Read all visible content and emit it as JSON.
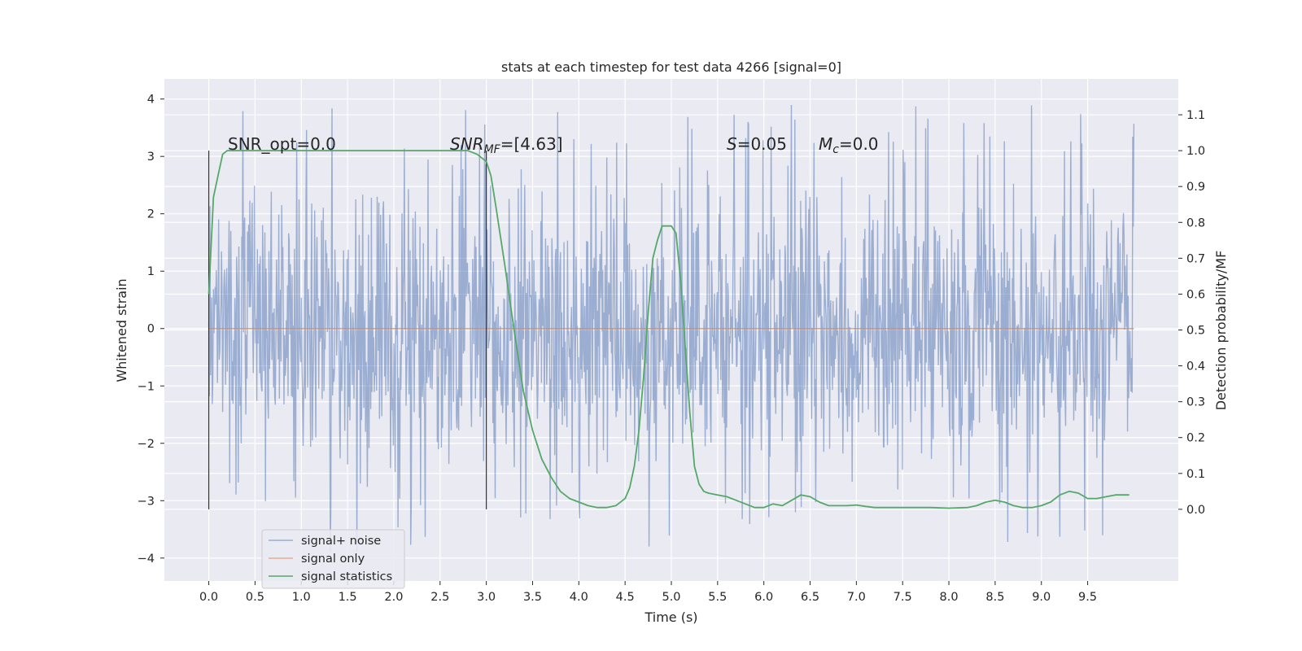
{
  "chart_data": {
    "type": "line",
    "title": "stats at each timestep for test data 4266 [signal=0]",
    "xlabel": "Time (s)",
    "ylabel_left": "Whitened strain",
    "ylabel_right": "Detection probability/MF",
    "xlim": [
      -0.48,
      10.48
    ],
    "ylim_left": [
      -4.4,
      4.35
    ],
    "ylim_right": [
      -0.2,
      1.2
    ],
    "x_ticks": [
      "0.0",
      "0.5",
      "1.0",
      "1.5",
      "2.0",
      "2.5",
      "3.0",
      "3.5",
      "4.0",
      "4.5",
      "5.0",
      "5.5",
      "6.0",
      "6.5",
      "7.0",
      "7.5",
      "8.0",
      "8.5",
      "9.0",
      "9.5"
    ],
    "y_ticks_left": [
      "4",
      "3",
      "2",
      "1",
      "0",
      "−1",
      "−2",
      "−3",
      "−4"
    ],
    "y_ticks_right": [
      "1.1",
      "1.0",
      "0.9",
      "0.8",
      "0.7",
      "0.6",
      "0.5",
      "0.4",
      "0.3",
      "0.2",
      "0.1",
      "0.0"
    ],
    "grid": true,
    "legend_position": "lower-left",
    "vlines_x": [
      0.0,
      3.0
    ],
    "annotations": {
      "snr_opt": "SNR_opt=0.0",
      "snr_mf_label": "SNR",
      "snr_mf_sub": "MF",
      "snr_mf_value": "=[4.63]",
      "s_label": "S",
      "s_value": "=0.05",
      "mc_label": "M",
      "mc_sub": "c",
      "mc_value": "=0.0"
    },
    "series": [
      {
        "name": "signal+ noise",
        "axis": "left",
        "color": "#4c72b0",
        "opacity": 0.5,
        "x_range": [
          0.0,
          10.0
        ],
        "sample_count": 1600,
        "range_envelope": [
          -3.9,
          4.0
        ]
      },
      {
        "name": "signal only",
        "axis": "left",
        "color": "#dd8452",
        "x": [
          0.0,
          10.0
        ],
        "y": [
          0.0,
          0.0
        ]
      },
      {
        "name": "signal statistics",
        "axis": "right",
        "color": "#55a868",
        "x": [
          0.0,
          0.05,
          0.1,
          0.15,
          0.2,
          0.3,
          0.5,
          1.0,
          1.5,
          2.0,
          2.5,
          2.8,
          2.9,
          3.0,
          3.05,
          3.1,
          3.2,
          3.3,
          3.4,
          3.5,
          3.6,
          3.7,
          3.8,
          3.9,
          4.0,
          4.1,
          4.2,
          4.3,
          4.4,
          4.5,
          4.55,
          4.6,
          4.65,
          4.7,
          4.75,
          4.8,
          4.85,
          4.9,
          4.95,
          5.0,
          5.05,
          5.1,
          5.15,
          5.2,
          5.25,
          5.3,
          5.35,
          5.4,
          5.5,
          5.6,
          5.7,
          5.8,
          5.9,
          6.0,
          6.1,
          6.2,
          6.3,
          6.4,
          6.5,
          6.6,
          6.7,
          6.8,
          6.9,
          7.0,
          7.1,
          7.2,
          7.3,
          7.4,
          7.6,
          7.8,
          8.0,
          8.2,
          8.3,
          8.4,
          8.5,
          8.6,
          8.7,
          8.8,
          8.9,
          9.0,
          9.1,
          9.2,
          9.3,
          9.4,
          9.5,
          9.6,
          9.7,
          9.8,
          9.9,
          9.95
        ],
        "y": [
          0.6,
          0.87,
          0.93,
          0.99,
          1.0,
          1.0,
          1.0,
          1.0,
          1.0,
          1.0,
          1.0,
          1.0,
          0.99,
          0.97,
          0.93,
          0.85,
          0.68,
          0.5,
          0.33,
          0.22,
          0.14,
          0.09,
          0.05,
          0.03,
          0.02,
          0.01,
          0.005,
          0.005,
          0.01,
          0.03,
          0.06,
          0.12,
          0.22,
          0.37,
          0.55,
          0.7,
          0.75,
          0.79,
          0.79,
          0.79,
          0.77,
          0.64,
          0.45,
          0.27,
          0.12,
          0.07,
          0.05,
          0.045,
          0.04,
          0.035,
          0.025,
          0.015,
          0.005,
          0.005,
          0.015,
          0.01,
          0.025,
          0.04,
          0.035,
          0.02,
          0.01,
          0.01,
          0.01,
          0.012,
          0.008,
          0.005,
          0.005,
          0.005,
          0.005,
          0.005,
          0.003,
          0.005,
          0.01,
          0.02,
          0.025,
          0.02,
          0.01,
          0.005,
          0.005,
          0.01,
          0.02,
          0.04,
          0.05,
          0.045,
          0.03,
          0.03,
          0.035,
          0.04,
          0.04,
          0.04
        ]
      }
    ]
  }
}
